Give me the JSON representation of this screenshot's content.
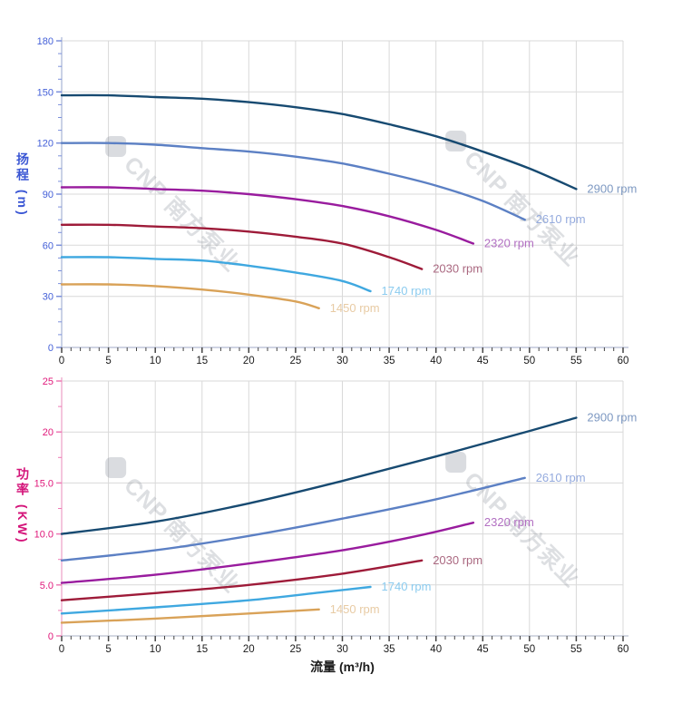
{
  "watermark": {
    "text": "CNP 南方泵业"
  },
  "chart_data": [
    {
      "name": "head-flow-chart",
      "type": "line",
      "title": "",
      "xlabel": "",
      "ylabel": "扬程 (m)",
      "xlim": [
        0,
        60
      ],
      "ylim": [
        0,
        180
      ],
      "x_major_step": 5,
      "x_minor_step": 1,
      "y_major_step": 30,
      "y_minor_step": 7.5,
      "grid": true,
      "legend_position": "curve-end-labels",
      "x_tick_labels": [
        "0",
        "5",
        "10",
        "15",
        "20",
        "25",
        "30",
        "35",
        "40",
        "45",
        "50",
        "55",
        "60"
      ],
      "y_tick_labels": [
        "0",
        "30",
        "60",
        "90",
        "120",
        "150",
        "180"
      ],
      "style": {
        "grid_color": "#D9D9D9",
        "y_axis_color": "#B9C3DE",
        "x_axis_color": "#BFC6DA",
        "y_tick_color": "#7C90DC",
        "x_tick_color": "#444444",
        "y_tick_label_color": "#4460D8",
        "x_tick_label_color": "#1A1A1A",
        "watermark_color": "#7B828E"
      },
      "series": [
        {
          "name": "2900 rpm",
          "color": "#174A71",
          "label_color": "#7E99C2",
          "points": [
            [
              0,
              148
            ],
            [
              5,
              148
            ],
            [
              10,
              147
            ],
            [
              15,
              146
            ],
            [
              20,
              144
            ],
            [
              25,
              141
            ],
            [
              30,
              137
            ],
            [
              35,
              131
            ],
            [
              40,
              124
            ],
            [
              45,
              115
            ],
            [
              50,
              105
            ],
            [
              55,
              93
            ]
          ]
        },
        {
          "name": "2610 rpm",
          "color": "#5C80C4",
          "label_color": "#95ABDE",
          "points": [
            [
              0,
              120
            ],
            [
              5,
              120
            ],
            [
              10,
              119
            ],
            [
              15,
              117
            ],
            [
              20,
              115
            ],
            [
              25,
              112
            ],
            [
              30,
              108
            ],
            [
              35,
              102
            ],
            [
              40,
              95
            ],
            [
              45,
              86
            ],
            [
              49.5,
              75
            ]
          ]
        },
        {
          "name": "2320 rpm",
          "color": "#991C9E",
          "label_color": "#B270C2",
          "points": [
            [
              0,
              94
            ],
            [
              5,
              94
            ],
            [
              10,
              93
            ],
            [
              15,
              92
            ],
            [
              20,
              90
            ],
            [
              25,
              87
            ],
            [
              30,
              83
            ],
            [
              35,
              77
            ],
            [
              40,
              69
            ],
            [
              44,
              61
            ]
          ]
        },
        {
          "name": "2030 rpm",
          "color": "#9E1B39",
          "label_color": "#AA6880",
          "points": [
            [
              0,
              72
            ],
            [
              5,
              72
            ],
            [
              10,
              71
            ],
            [
              15,
              70
            ],
            [
              20,
              68
            ],
            [
              25,
              65
            ],
            [
              30,
              61
            ],
            [
              35,
              53
            ],
            [
              38.5,
              46
            ]
          ]
        },
        {
          "name": "1740 rpm",
          "color": "#3FA8E0",
          "label_color": "#8BCBEF",
          "points": [
            [
              0,
              53
            ],
            [
              5,
              53
            ],
            [
              10,
              52
            ],
            [
              15,
              51
            ],
            [
              20,
              48
            ],
            [
              25,
              44
            ],
            [
              30,
              39
            ],
            [
              33,
              33
            ]
          ]
        },
        {
          "name": "1450 rpm",
          "color": "#D9A258",
          "label_color": "#E8CBA4",
          "points": [
            [
              0,
              37
            ],
            [
              5,
              37
            ],
            [
              10,
              36
            ],
            [
              15,
              34
            ],
            [
              20,
              31
            ],
            [
              25,
              27
            ],
            [
              27.5,
              23
            ]
          ]
        }
      ]
    },
    {
      "name": "power-flow-chart",
      "type": "line",
      "title": "",
      "xlabel": "流量 (m³/h)",
      "ylabel": "功率 (KW)",
      "xlim": [
        0,
        60
      ],
      "ylim": [
        0,
        25
      ],
      "x_major_step": 5,
      "x_minor_step": 1,
      "y_major_step": 5,
      "y_minor_step": 2.5,
      "grid": true,
      "legend_position": "curve-end-labels",
      "x_tick_labels": [
        "0",
        "5",
        "10",
        "15",
        "20",
        "25",
        "30",
        "35",
        "40",
        "45",
        "50",
        "55",
        "60"
      ],
      "y_tick_labels": [
        "0",
        "5.0",
        "10.0",
        "15.0",
        "20",
        "25"
      ],
      "style": {
        "grid_color": "#D9D9D9",
        "y_axis_color": "#F0B2D2",
        "x_axis_color": "#C6CBD8",
        "y_tick_color": "#EE7AB4",
        "x_tick_color": "#444444",
        "y_tick_label_color": "#E0187A",
        "x_tick_label_color": "#1A1A1A",
        "watermark_color": "#7B828E"
      },
      "series": [
        {
          "name": "2900 rpm",
          "color": "#174A71",
          "label_color": "#7E99C2",
          "points": [
            [
              0,
              10.0
            ],
            [
              10,
              11.2
            ],
            [
              20,
              13.0
            ],
            [
              30,
              15.2
            ],
            [
              40,
              17.6
            ],
            [
              50,
              20.1
            ],
            [
              55,
              21.4
            ]
          ]
        },
        {
          "name": "2610 rpm",
          "color": "#5C80C4",
          "label_color": "#95ABDE",
          "points": [
            [
              0,
              7.4
            ],
            [
              10,
              8.4
            ],
            [
              20,
              9.8
            ],
            [
              30,
              11.5
            ],
            [
              40,
              13.4
            ],
            [
              49.5,
              15.5
            ]
          ]
        },
        {
          "name": "2320 rpm",
          "color": "#991C9E",
          "label_color": "#B270C2",
          "points": [
            [
              0,
              5.2
            ],
            [
              10,
              6.0
            ],
            [
              20,
              7.1
            ],
            [
              30,
              8.4
            ],
            [
              38,
              9.8
            ],
            [
              44,
              11.1
            ]
          ]
        },
        {
          "name": "2030 rpm",
          "color": "#9E1B39",
          "label_color": "#AA6880",
          "points": [
            [
              0,
              3.5
            ],
            [
              10,
              4.2
            ],
            [
              20,
              5.0
            ],
            [
              30,
              6.1
            ],
            [
              38.5,
              7.4
            ]
          ]
        },
        {
          "name": "1740 rpm",
          "color": "#3FA8E0",
          "label_color": "#8BCBEF",
          "points": [
            [
              0,
              2.2
            ],
            [
              10,
              2.8
            ],
            [
              20,
              3.5
            ],
            [
              28,
              4.3
            ],
            [
              33,
              4.8
            ]
          ]
        },
        {
          "name": "1450 rpm",
          "color": "#D9A258",
          "label_color": "#E8CBA4",
          "points": [
            [
              0,
              1.3
            ],
            [
              10,
              1.7
            ],
            [
              20,
              2.2
            ],
            [
              27.5,
              2.6
            ]
          ]
        }
      ]
    }
  ]
}
